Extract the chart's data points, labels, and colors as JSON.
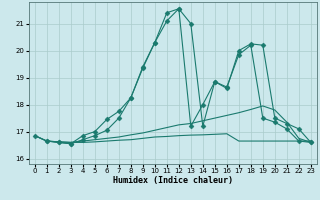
{
  "title": "",
  "xlabel": "Humidex (Indice chaleur)",
  "ylabel": "",
  "xlim": [
    -0.5,
    23.5
  ],
  "ylim": [
    15.8,
    21.8
  ],
  "yticks": [
    16,
    17,
    18,
    19,
    20,
    21
  ],
  "xticks": [
    0,
    1,
    2,
    3,
    4,
    5,
    6,
    7,
    8,
    9,
    10,
    11,
    12,
    13,
    14,
    15,
    16,
    17,
    18,
    19,
    20,
    21,
    22,
    23
  ],
  "bg_color": "#cce8ec",
  "grid_color": "#aacccc",
  "line_color": "#1a7a6e",
  "lines": [
    {
      "x": [
        0,
        1,
        2,
        3,
        4,
        5,
        6,
        7,
        8,
        9,
        10,
        11,
        12,
        13,
        14,
        15,
        16,
        17,
        18,
        19,
        20,
        21,
        22,
        23
      ],
      "y": [
        16.85,
        16.65,
        16.62,
        16.6,
        16.6,
        16.62,
        16.65,
        16.68,
        16.7,
        16.75,
        16.8,
        16.82,
        16.85,
        16.87,
        16.88,
        16.9,
        16.92,
        16.65,
        16.65,
        16.65,
        16.65,
        16.65,
        16.65,
        16.65
      ],
      "marker": false
    },
    {
      "x": [
        0,
        1,
        2,
        3,
        4,
        5,
        6,
        7,
        8,
        9,
        10,
        11,
        12,
        13,
        14,
        15,
        16,
        17,
        18,
        19,
        20,
        21,
        22,
        23
      ],
      "y": [
        16.85,
        16.65,
        16.62,
        16.6,
        16.65,
        16.7,
        16.75,
        16.8,
        16.88,
        16.95,
        17.05,
        17.15,
        17.25,
        17.3,
        17.4,
        17.5,
        17.6,
        17.7,
        17.82,
        17.95,
        17.8,
        17.35,
        16.75,
        16.6
      ],
      "marker": false
    },
    {
      "x": [
        1,
        2,
        3,
        4,
        5,
        6,
        7,
        8,
        9,
        10,
        11,
        12,
        13,
        14,
        15,
        16,
        17,
        18,
        19,
        20,
        21,
        22,
        23
      ],
      "y": [
        16.65,
        16.6,
        16.55,
        16.85,
        17.0,
        17.45,
        17.75,
        18.25,
        19.35,
        20.3,
        21.4,
        21.55,
        21.0,
        17.2,
        18.85,
        18.6,
        20.0,
        20.25,
        20.2,
        17.5,
        17.3,
        17.1,
        16.6
      ],
      "marker": true
    },
    {
      "x": [
        0,
        1,
        2,
        3,
        4,
        5,
        6,
        7,
        8,
        9,
        10,
        11,
        12,
        13,
        14,
        15,
        16,
        17,
        18,
        19,
        20,
        21,
        22,
        23
      ],
      "y": [
        16.85,
        16.65,
        16.6,
        16.55,
        16.7,
        16.85,
        17.05,
        17.5,
        18.25,
        19.4,
        20.3,
        21.1,
        21.55,
        17.2,
        18.0,
        18.85,
        18.65,
        19.85,
        20.2,
        17.5,
        17.35,
        17.1,
        16.65,
        16.6
      ],
      "marker": true
    }
  ]
}
